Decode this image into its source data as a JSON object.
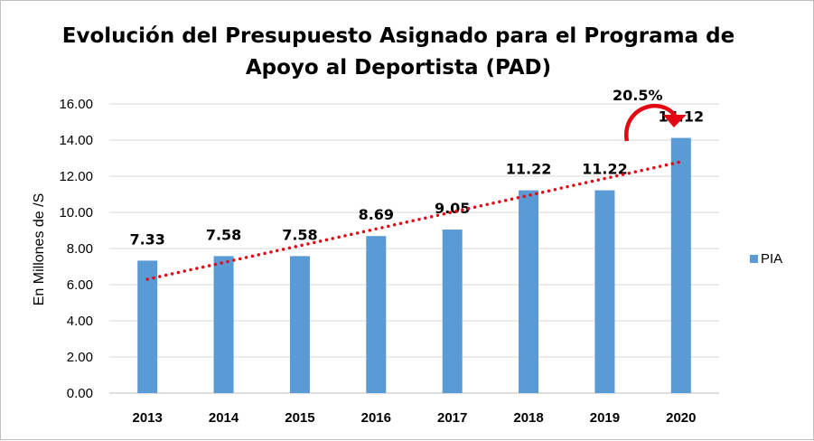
{
  "chart_data": {
    "type": "bar",
    "title_line1": "Evolución del Presupuesto Asignado para el Programa de",
    "title_line2": "Apoyo al Deportista (PAD)",
    "ylabel": "En Millones de /S",
    "xlabel": "",
    "categories": [
      "2013",
      "2014",
      "2015",
      "2016",
      "2017",
      "2018",
      "2019",
      "2020"
    ],
    "series": [
      {
        "name": "PIA",
        "values": [
          7.33,
          7.58,
          7.58,
          8.69,
          9.05,
          11.22,
          11.22,
          14.12
        ],
        "color": "#5b9bd5"
      }
    ],
    "data_labels": [
      "7.33",
      "7.58",
      "7.58",
      "8.69",
      "9.05",
      "11.22",
      "11.22",
      "14.12"
    ],
    "ylim": [
      0,
      16
    ],
    "yticks": [
      "0.00",
      "2.00",
      "4.00",
      "6.00",
      "8.00",
      "10.00",
      "12.00",
      "14.00",
      "16.00"
    ],
    "grid": true,
    "legend_position": "right",
    "trendline": {
      "type": "linear",
      "style": "dotted",
      "color": "#e30613",
      "start_value": 6.3,
      "end_value": 12.8
    },
    "annotation": {
      "text": "20.5%",
      "arrow_color": "#e30613"
    }
  }
}
